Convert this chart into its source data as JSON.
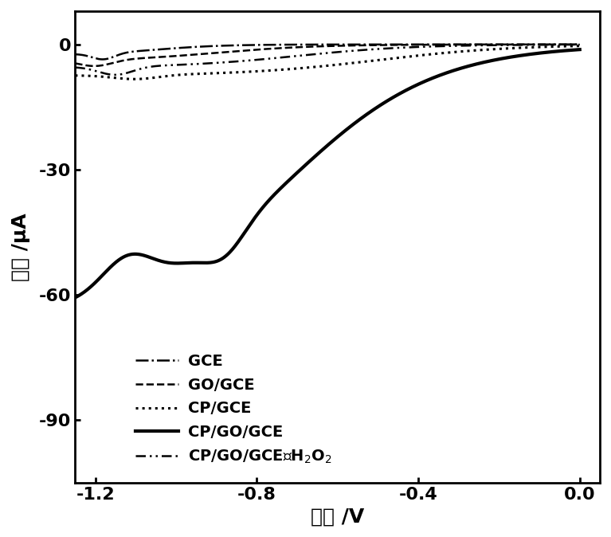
{
  "xlabel": "电位 /V",
  "ylabel": "电流 /μA",
  "xlim": [
    -1.25,
    0.05
  ],
  "ylim": [
    -105,
    8
  ],
  "xticks": [
    -1.2,
    -0.8,
    -0.4,
    0.0
  ],
  "yticks": [
    0,
    -30,
    -60,
    -90
  ],
  "background_color": "#ffffff",
  "legend_entries": [
    "GCE",
    "GO/GCE",
    "CP/GCE",
    "CP/GO/GCE",
    "CP/GO/GCE无H$_2$O$_2$"
  ]
}
